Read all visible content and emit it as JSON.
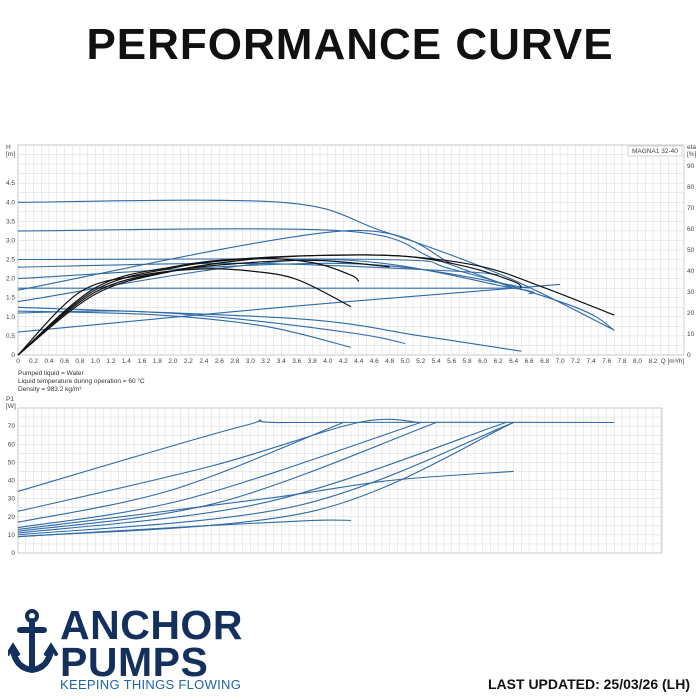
{
  "header": {
    "title": "PERFORMANCE CURVE"
  },
  "brand": {
    "name_line1": "ANCHOR",
    "name_line2": "PUMPS",
    "tagline": "KEEPING THINGS FLOWING",
    "color_dark": "#14305c",
    "color_accent": "#1d63b0"
  },
  "footer": {
    "updated": "LAST UPDATED: 25/03/26 (LH)"
  },
  "colors": {
    "curve_blue": "#2e6ba8",
    "curve_black": "#111111",
    "grid": "#d9d9d9"
  },
  "pump_info": {
    "liquid": "Pumped liquid = Water",
    "temperature": "Liquid temperature during operation = 60 °C",
    "density": "Density = 983.2 kg/m³"
  },
  "chart_data": [
    {
      "type": "line",
      "legend_box": "MAGNA1 32-40",
      "ylabel_left": [
        "H",
        "[m]"
      ],
      "ylabel_right": [
        "eta",
        "[%]"
      ],
      "xlabel": "Q [m³/h]",
      "xlim": [
        0,
        8.6
      ],
      "ylim": [
        0,
        5.5
      ],
      "y2lim": [
        0,
        100
      ],
      "x_ticks": [
        0,
        0.2,
        0.4,
        0.6,
        0.8,
        1.0,
        1.2,
        1.4,
        1.6,
        1.8,
        2.0,
        2.2,
        2.4,
        2.6,
        2.8,
        3.0,
        3.2,
        3.4,
        3.6,
        3.8,
        4.0,
        4.2,
        4.4,
        4.6,
        4.8,
        5.0,
        5.2,
        5.4,
        5.6,
        5.8,
        6.0,
        6.2,
        6.4,
        6.6,
        6.8,
        7.0,
        7.2,
        7.4,
        7.6,
        7.8,
        8.0,
        8.2
      ],
      "x_tick_labels": [
        "0",
        "0.2",
        "0.4",
        "0.6",
        "0.8",
        "1.0",
        "1.2",
        "1.4",
        "1.6",
        "1.8",
        "2.0",
        "2.2",
        "2.4",
        "2.6",
        "2.8",
        "3.0",
        "3.2",
        "3.4",
        "3.6",
        "3.8",
        "4.0",
        "4.2",
        "4.4",
        "4.6",
        "4.8",
        "5.0",
        "5.2",
        "5.4",
        "5.6",
        "5.8",
        "6.0",
        "6.2",
        "6.4",
        "6.6",
        "6.8",
        "7.0",
        "7.2",
        "7.4",
        "7.6",
        "7.8",
        "8.0",
        "8.2"
      ],
      "y_ticks": [
        0,
        0.5,
        1.0,
        1.5,
        2.0,
        2.5,
        3.0,
        3.5,
        4.0,
        4.5
      ],
      "y_tick_labels": [
        "0",
        "0.5",
        "1.0",
        "1.5",
        "2.0",
        "2.5",
        "3.0",
        "3.5",
        "4.0",
        "4.5"
      ],
      "y2_ticks": [
        0,
        10,
        20,
        30,
        40,
        50,
        60,
        70,
        80,
        90
      ],
      "y2_tick_labels": [
        "0",
        "10",
        "20",
        "30",
        "40",
        "50",
        "60",
        "70",
        "80",
        "90"
      ],
      "grid": true,
      "head_curves": [
        {
          "points": [
            [
              0,
              4.0
            ],
            [
              3.4,
              4.0
            ],
            [
              4.7,
              3.25
            ],
            [
              6.3,
              2.05
            ],
            [
              7.7,
              0.65
            ]
          ]
        },
        {
          "points": [
            [
              0,
              3.25
            ],
            [
              4.2,
              3.25
            ],
            [
              5.4,
              2.5
            ],
            [
              6.4,
              1.75
            ]
          ]
        },
        {
          "points": [
            [
              0,
              2.5
            ],
            [
              4.7,
              2.5
            ],
            [
              5.6,
              2.25
            ],
            [
              7.2,
              1.25
            ],
            [
              7.7,
              0.65
            ]
          ]
        },
        {
          "points": [
            [
              0,
              1.75
            ],
            [
              6.4,
              1.75
            ]
          ]
        },
        {
          "points": [
            [
              0,
              1.25
            ],
            [
              3.6,
              0.95
            ],
            [
              5.2,
              0.5
            ],
            [
              6.5,
              0.1
            ]
          ]
        },
        {
          "points": [
            [
              0,
              1.1
            ],
            [
              1.4,
              1.15
            ],
            [
              2.8,
              0.95
            ],
            [
              4.4,
              0.55
            ],
            [
              5.0,
              0.3
            ]
          ]
        },
        {
          "points": [
            [
              0,
              1.15
            ],
            [
              1.8,
              1.05
            ],
            [
              3.2,
              0.75
            ],
            [
              4.3,
              0.2
            ]
          ]
        },
        {
          "points": [
            [
              0,
              2.3
            ],
            [
              3.0,
              2.4
            ],
            [
              5.6,
              2.2
            ],
            [
              6.2,
              2.1
            ]
          ]
        },
        {
          "points": [
            [
              0,
              1.4
            ],
            [
              3.8,
              2.5
            ],
            [
              6.4,
              1.75
            ],
            [
              6.6,
              1.6
            ]
          ]
        },
        {
          "points": [
            [
              0,
              1.7
            ],
            [
              4.2,
              3.25
            ],
            [
              5.6,
              2.4
            ]
          ]
        },
        {
          "points": [
            [
              0,
              2.0
            ],
            [
              4.2,
              2.4
            ],
            [
              6.6,
              1.75
            ]
          ]
        },
        {
          "points": [
            [
              0,
              0.6
            ],
            [
              3.4,
              1.25
            ],
            [
              6.4,
              1.75
            ],
            [
              7.0,
              1.85
            ]
          ]
        }
      ],
      "eta_curves": [
        {
          "points": [
            [
              0,
              0
            ],
            [
              1,
              29
            ],
            [
              2,
              40
            ],
            [
              3,
              45.5
            ],
            [
              4,
              47.5
            ],
            [
              5,
              47
            ],
            [
              6,
              42
            ],
            [
              6.8,
              32
            ],
            [
              7.7,
              19
            ]
          ]
        },
        {
          "points": [
            [
              0,
              0
            ],
            [
              1,
              31
            ],
            [
              2,
              41.5
            ],
            [
              3,
              46
            ],
            [
              4,
              47.5
            ],
            [
              5,
              47
            ],
            [
              5.8,
              42
            ],
            [
              6.4,
              35
            ],
            [
              6.5,
              32
            ]
          ]
        },
        {
          "points": [
            [
              0,
              0
            ],
            [
              1,
              32
            ],
            [
              2,
              42
            ],
            [
              3,
              46
            ],
            [
              3.8,
              44
            ],
            [
              4.3,
              38
            ],
            [
              4.4,
              35
            ]
          ]
        },
        {
          "points": [
            [
              0,
              0
            ],
            [
              0.8,
              30
            ],
            [
              1.6,
              38
            ],
            [
              2.4,
              41
            ],
            [
              3.0,
              40
            ],
            [
              3.6,
              36
            ],
            [
              4.3,
              23
            ]
          ]
        },
        {
          "points": [
            [
              0,
              0
            ],
            [
              1,
              30
            ],
            [
              2,
              40
            ],
            [
              3,
              44
            ],
            [
              3.9,
              45
            ],
            [
              4.8,
              42
            ]
          ]
        }
      ]
    },
    {
      "type": "line",
      "ylabel": [
        "P1",
        "[W]"
      ],
      "xlim": [
        0,
        8.6
      ],
      "ylim": [
        0,
        80
      ],
      "y_ticks": [
        0,
        10,
        20,
        30,
        40,
        50,
        60,
        70
      ],
      "y_tick_labels": [
        "0",
        "10",
        "20",
        "30",
        "40",
        "50",
        "60",
        "70"
      ],
      "grid": true,
      "power_curves": [
        {
          "points": [
            [
              0,
              34
            ],
            [
              2.9,
              70
            ],
            [
              3.5,
              72
            ],
            [
              7.7,
              72
            ]
          ]
        },
        {
          "points": [
            [
              0,
              23
            ],
            [
              2.5,
              48
            ],
            [
              4.4,
              72
            ],
            [
              5.2,
              72
            ]
          ]
        },
        {
          "points": [
            [
              0,
              17
            ],
            [
              2,
              35
            ],
            [
              4.2,
              72
            ]
          ]
        },
        {
          "points": [
            [
              0,
              14
            ],
            [
              2.2,
              30
            ],
            [
              5.2,
              72
            ]
          ]
        },
        {
          "points": [
            [
              0,
              12
            ],
            [
              2.6,
              28
            ],
            [
              5.4,
              72
            ]
          ]
        },
        {
          "points": [
            [
              0,
              11
            ],
            [
              3.2,
              28
            ],
            [
              6.3,
              72
            ]
          ]
        },
        {
          "points": [
            [
              0,
              10
            ],
            [
              3.6,
              26
            ],
            [
              6.4,
              72
            ]
          ]
        },
        {
          "points": [
            [
              0,
              9
            ],
            [
              3.8,
              23
            ],
            [
              6.4,
              72
            ]
          ]
        },
        {
          "points": [
            [
              0,
              13
            ],
            [
              3.2,
              30
            ],
            [
              4.8,
              40
            ],
            [
              6.4,
              45
            ]
          ]
        },
        {
          "points": [
            [
              0,
              9
            ],
            [
              2.4,
              15
            ],
            [
              3.8,
              18
            ],
            [
              4.3,
              18
            ]
          ]
        }
      ]
    }
  ]
}
